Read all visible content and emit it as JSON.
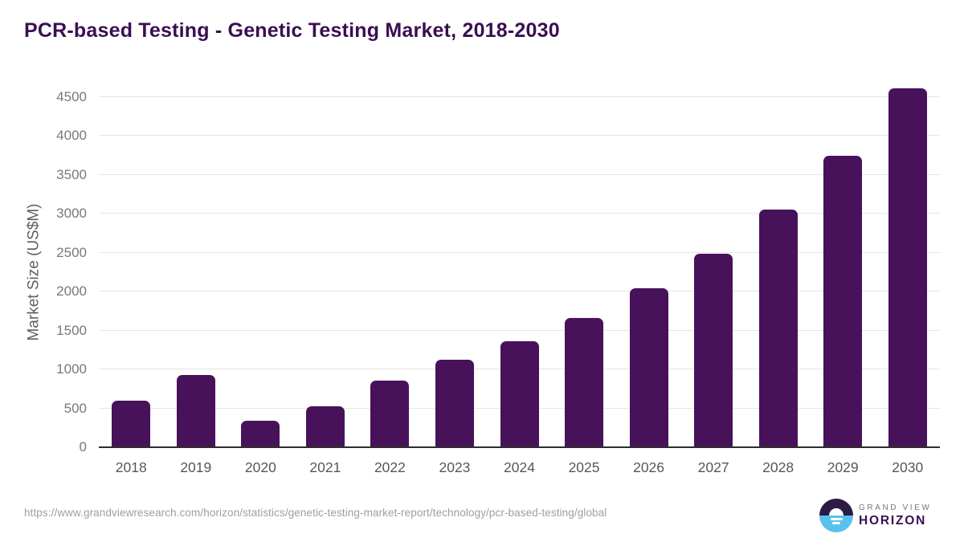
{
  "title": "PCR-based Testing - Genetic Testing Market, 2018-2030",
  "source_url": "https://www.grandviewresearch.com/horizon/statistics/genetic-testing-market-report/technology/pcr-based-testing/global",
  "logo": {
    "line1": "GRAND VIEW",
    "line2": "HORIZON"
  },
  "colors": {
    "bar": "#47125A",
    "title": "#3A0F52",
    "gridline": "#E5E5E5",
    "axis_line": "#2D2D2D",
    "logo_purple": "#2D1A45",
    "logo_blue": "#56C2ED"
  },
  "chart_data": {
    "type": "bar",
    "title": "PCR-based Testing - Genetic Testing Market, 2018-2030",
    "categories": [
      "2018",
      "2019",
      "2020",
      "2021",
      "2022",
      "2023",
      "2024",
      "2025",
      "2026",
      "2027",
      "2028",
      "2029",
      "2030"
    ],
    "values": [
      595,
      930,
      340,
      530,
      860,
      1125,
      1360,
      1665,
      2040,
      2490,
      3060,
      3750,
      4610
    ],
    "xlabel": "",
    "ylabel": "Market Size (US$M)",
    "ylim": [
      0,
      4500
    ],
    "yticks": [
      0,
      500,
      1000,
      1500,
      2000,
      2500,
      3000,
      3500,
      4000,
      4500
    ],
    "grid": "horizontal",
    "legend": false,
    "bar_color": "#47125A"
  }
}
